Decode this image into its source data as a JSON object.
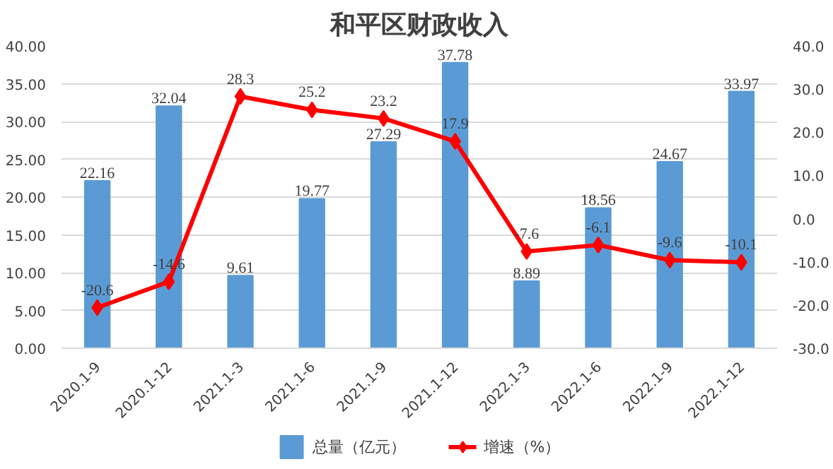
{
  "chart_data": {
    "type": "bar",
    "title": "和平区财政收入",
    "categories": [
      "2020.1-9",
      "2020.1-12",
      "2021.1-3",
      "2021.1-6",
      "2021.1-9",
      "2021.1-12",
      "2022.1-3",
      "2022.1-6",
      "2022.1-9",
      "2022.1-12"
    ],
    "series": [
      {
        "name": "总量（亿元）",
        "color": "#5b9bd5",
        "values": [
          22.16,
          32.04,
          9.61,
          19.77,
          27.29,
          37.78,
          8.89,
          18.56,
          24.67,
          33.97
        ]
      },
      {
        "name": "增速（%）",
        "type": "line",
        "axis": "y2",
        "color": "#ff0000",
        "marker": "diamond",
        "values": [
          -20.6,
          -14.6,
          28.3,
          25.2,
          23.2,
          17.9,
          -7.6,
          -6.1,
          -9.6,
          -10.1
        ]
      }
    ],
    "ylim": [
      0,
      40
    ],
    "yticks": [
      {
        "value": 0,
        "label": "0.00"
      },
      {
        "value": 5,
        "label": "5.00"
      },
      {
        "value": 10,
        "label": "10.00"
      },
      {
        "value": 15,
        "label": "15.00"
      },
      {
        "value": 20,
        "label": "20.00"
      },
      {
        "value": 25,
        "label": "25.00"
      },
      {
        "value": 30,
        "label": "30.00"
      },
      {
        "value": 35,
        "label": "35.00"
      },
      {
        "value": 40,
        "label": "40.00"
      }
    ],
    "y2lim": [
      -30,
      40
    ],
    "y2ticks": [
      {
        "value": -30,
        "label": "-30.0"
      },
      {
        "value": -20,
        "label": "-20.0"
      },
      {
        "value": -10,
        "label": "-10.0"
      },
      {
        "value": 0,
        "label": "0.0"
      },
      {
        "value": 10,
        "label": "10.0"
      },
      {
        "value": 20,
        "label": "20.0"
      },
      {
        "value": 30,
        "label": "30.0"
      },
      {
        "value": 40,
        "label": "40.0"
      }
    ],
    "grid": "y",
    "legend": "bottom",
    "data_labels": true
  }
}
